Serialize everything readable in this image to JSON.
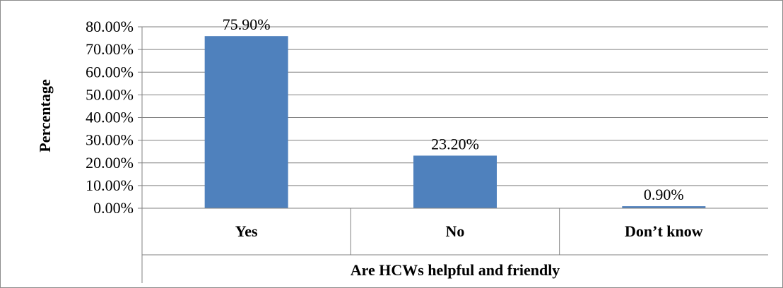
{
  "chart_data": {
    "type": "bar",
    "categories": [
      "Yes",
      "No",
      "Don’t know"
    ],
    "values": [
      75.9,
      23.2,
      0.9
    ],
    "data_labels": [
      "75.90%",
      "23.20%",
      "0.90%"
    ],
    "title": "",
    "xlabel": "Are HCWs helpful and friendly",
    "ylabel": "Percentage",
    "ylim": [
      0,
      80
    ],
    "yticks": [
      0,
      10,
      20,
      30,
      40,
      50,
      60,
      70,
      80
    ],
    "ytick_labels": [
      "0.00%",
      "10.00%",
      "20.00%",
      "30.00%",
      "40.00%",
      "50.00%",
      "60.00%",
      "70.00%",
      "80.00%"
    ],
    "grid": true,
    "legend": "none",
    "bar_color": "#4f81bd",
    "grid_color": "#808080"
  }
}
